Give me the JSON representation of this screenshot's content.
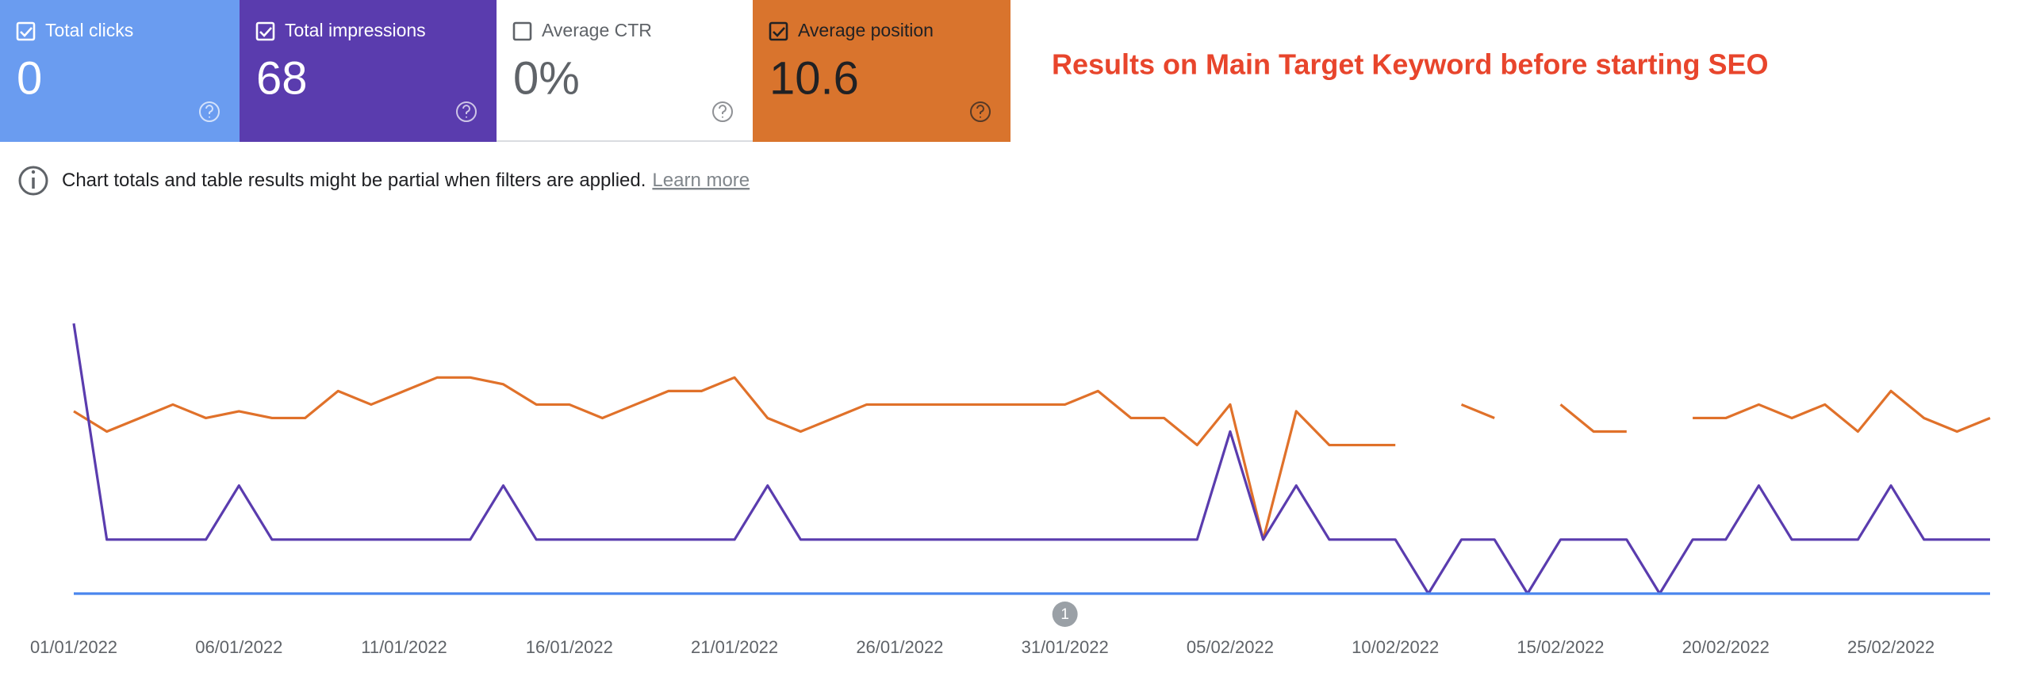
{
  "cards": [
    {
      "label": "Total clicks",
      "value": "0",
      "checked": true,
      "color": "#6a9cf0",
      "text_color": "#ffffff"
    },
    {
      "label": "Total impressions",
      "value": "68",
      "checked": true,
      "color": "#5a3cae",
      "text_color": "#ffffff"
    },
    {
      "label": "Average CTR",
      "value": "0%",
      "checked": false,
      "color": "#ffffff",
      "text_color": "#5f6368"
    },
    {
      "label": "Average position",
      "value": "10.6",
      "checked": true,
      "color": "#d9742d",
      "text_color": "#202124"
    }
  ],
  "notice": {
    "text": "Chart totals and table results might be partial when filters are applied.",
    "link": "Learn more"
  },
  "annotation": "Results on Main Target Keyword before starting SEO",
  "chart_data": {
    "type": "line",
    "categories": [
      "01/01/2022",
      null,
      null,
      null,
      null,
      "06/01/2022",
      null,
      null,
      null,
      null,
      "11/01/2022",
      null,
      null,
      null,
      null,
      "16/01/2022",
      null,
      null,
      null,
      null,
      "21/01/2022",
      null,
      null,
      null,
      null,
      "26/01/2022",
      null,
      null,
      null,
      null,
      "31/01/2022",
      null,
      null,
      null,
      null,
      "05/02/2022",
      null,
      null,
      null,
      null,
      "10/02/2022",
      null,
      null,
      null,
      null,
      "15/02/2022",
      null,
      null,
      null,
      null,
      "20/02/2022",
      null,
      null,
      null,
      null,
      "25/02/2022",
      null,
      null,
      null
    ],
    "series": [
      {
        "name": "Total clicks",
        "color": "#4a86ee",
        "values": [
          0,
          0,
          0,
          0,
          0,
          0,
          0,
          0,
          0,
          0,
          0,
          0,
          0,
          0,
          0,
          0,
          0,
          0,
          0,
          0,
          0,
          0,
          0,
          0,
          0,
          0,
          0,
          0,
          0,
          0,
          0,
          0,
          0,
          0,
          0,
          0,
          0,
          0,
          0,
          0,
          0,
          0,
          0,
          0,
          0,
          0,
          0,
          0,
          0,
          0,
          0,
          0,
          0,
          0,
          0,
          0,
          0,
          0,
          0
        ]
      },
      {
        "name": "Total impressions",
        "color": "#5a3cae",
        "values": [
          5,
          1,
          1,
          1,
          1,
          2,
          1,
          1,
          1,
          1,
          1,
          1,
          1,
          2,
          1,
          1,
          1,
          1,
          1,
          1,
          1,
          2,
          1,
          1,
          1,
          1,
          1,
          1,
          1,
          1,
          1,
          1,
          1,
          1,
          1,
          3,
          1,
          2,
          1,
          1,
          1,
          0,
          1,
          1,
          0,
          1,
          1,
          1,
          0,
          1,
          1,
          2,
          1,
          1,
          1,
          2,
          1,
          1,
          1
        ]
      },
      {
        "name": "Average position",
        "color": "#e0712a",
        "axis": "y2",
        "values": [
          10.5,
          12,
          11,
          10,
          11,
          10.5,
          11,
          11,
          9,
          10,
          9,
          8,
          8,
          8.5,
          10,
          10,
          11,
          10,
          9,
          9,
          8,
          11,
          12,
          11,
          10,
          10,
          10,
          10,
          10,
          10,
          10,
          9,
          11,
          11,
          13,
          10,
          20,
          10.5,
          13,
          13,
          13,
          null,
          10,
          11,
          null,
          10,
          12,
          12,
          null,
          11,
          11,
          10,
          11,
          10,
          12,
          9,
          11,
          12,
          11
        ]
      }
    ],
    "ylim": [
      0,
      6
    ],
    "y2lim": [
      24,
      0
    ],
    "annotation_marker": "1"
  }
}
